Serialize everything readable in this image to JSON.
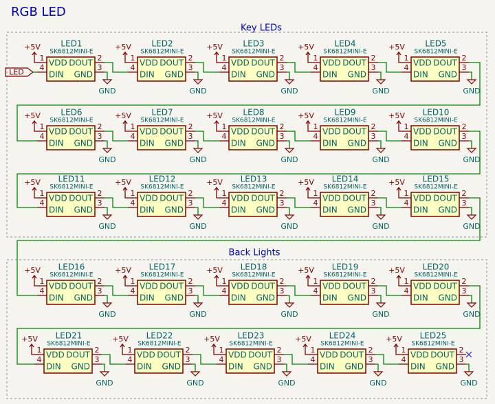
{
  "title": "RGB LED",
  "groups": [
    {
      "label": "Key LEDs"
    },
    {
      "label": "Back Lights"
    }
  ],
  "net_label": "LED",
  "symbol": {
    "pin_names": [
      "VDD",
      "DOUT",
      "DIN",
      "GND"
    ],
    "pin_numbers": [
      "1",
      "2",
      "3",
      "4"
    ],
    "power": "+5V",
    "ground": "GND"
  },
  "components": [
    {
      "ref": "LED1",
      "value": "SK6812MINI-E"
    },
    {
      "ref": "LED2",
      "value": "SK6812MINI-E"
    },
    {
      "ref": "LED3",
      "value": "SK6812MINI-E"
    },
    {
      "ref": "LED4",
      "value": "SK6812MINI-E"
    },
    {
      "ref": "LED5",
      "value": "SK6812MINI-E"
    },
    {
      "ref": "LED6",
      "value": "SK6812MINI-E"
    },
    {
      "ref": "LED7",
      "value": "SK6812MINI-E"
    },
    {
      "ref": "LED8",
      "value": "SK6812MINI-E"
    },
    {
      "ref": "LED9",
      "value": "SK6812MINI-E"
    },
    {
      "ref": "LED10",
      "value": "SK6812MINI-E"
    },
    {
      "ref": "LED11",
      "value": "SK6812MINI-E"
    },
    {
      "ref": "LED12",
      "value": "SK6812MINI-E"
    },
    {
      "ref": "LED13",
      "value": "SK6812MINI-E"
    },
    {
      "ref": "LED14",
      "value": "SK6812MINI-E"
    },
    {
      "ref": "LED15",
      "value": "SK6812MINI-E"
    },
    {
      "ref": "LED16",
      "value": "SK6812MINI-E"
    },
    {
      "ref": "LED17",
      "value": "SK6812MINI-E"
    },
    {
      "ref": "LED18",
      "value": "SK6812MINI-E"
    },
    {
      "ref": "LED19",
      "value": "SK6812MINI-E"
    },
    {
      "ref": "LED20",
      "value": "SK6812MINI-E"
    },
    {
      "ref": "LED21",
      "value": "SK6812MINI-E"
    },
    {
      "ref": "LED22",
      "value": "SK6812MINI-E"
    },
    {
      "ref": "LED23",
      "value": "SK6812MINI-E"
    },
    {
      "ref": "LED24",
      "value": "SK6812MINI-E"
    },
    {
      "ref": "LED25",
      "value": "SK6812MINI-E"
    }
  ]
}
